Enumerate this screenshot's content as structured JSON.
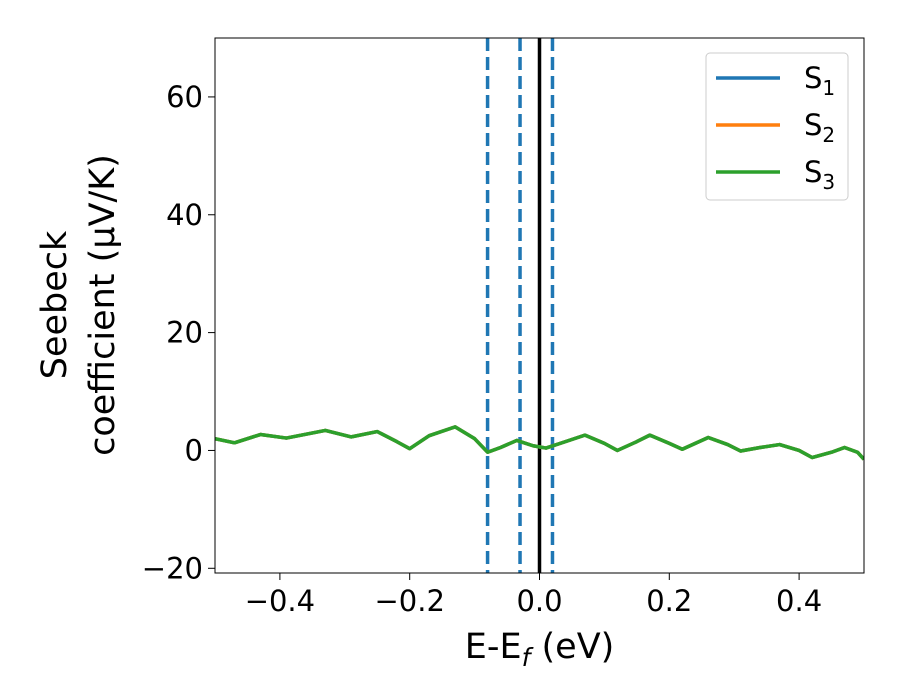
{
  "chart_data": {
    "type": "line",
    "xlabel": [
      "E-E",
      "f",
      " (eV)"
    ],
    "ylabel": [
      "Seebeck",
      "coefficient  (μV/K)"
    ],
    "x": [
      -0.5,
      -0.47,
      -0.43,
      -0.39,
      -0.33,
      -0.29,
      -0.25,
      -0.22,
      -0.2,
      -0.17,
      -0.13,
      -0.1,
      -0.08,
      -0.06,
      -0.035,
      -0.01,
      0.01,
      0.04,
      0.07,
      0.1,
      0.12,
      0.15,
      0.17,
      0.2,
      0.22,
      0.26,
      0.29,
      0.31,
      0.34,
      0.37,
      0.4,
      0.42,
      0.45,
      0.47,
      0.49,
      0.5
    ],
    "series": [
      {
        "name": [
          "S",
          "1"
        ],
        "color": "#1f77b4",
        "values": [
          2.0,
          1.3,
          2.7,
          2.1,
          3.4,
          2.3,
          3.2,
          1.5,
          0.3,
          2.5,
          4.0,
          2.0,
          -0.3,
          0.5,
          1.7,
          0.8,
          0.4,
          1.5,
          2.6,
          1.2,
          0.0,
          1.5,
          2.6,
          1.2,
          0.2,
          2.2,
          1.0,
          -0.1,
          0.5,
          1.0,
          0.0,
          -1.2,
          -0.3,
          0.5,
          -0.3,
          -1.5
        ]
      },
      {
        "name": [
          "S",
          "2"
        ],
        "color": "#ff7f0e",
        "values": [
          2.0,
          1.3,
          2.7,
          2.1,
          3.4,
          2.3,
          3.2,
          1.5,
          0.3,
          2.5,
          4.0,
          2.0,
          -0.3,
          0.5,
          1.7,
          0.8,
          0.4,
          1.5,
          2.6,
          1.2,
          0.0,
          1.5,
          2.6,
          1.2,
          0.2,
          2.2,
          1.0,
          -0.1,
          0.5,
          1.0,
          0.0,
          -1.2,
          -0.3,
          0.5,
          -0.3,
          -1.5
        ]
      },
      {
        "name": [
          "S",
          "3"
        ],
        "color": "#2ca02c",
        "values": [
          2.0,
          1.3,
          2.7,
          2.1,
          3.4,
          2.3,
          3.2,
          1.5,
          0.3,
          2.5,
          4.0,
          2.0,
          -0.3,
          0.5,
          1.7,
          0.8,
          0.4,
          1.5,
          2.6,
          1.2,
          0.0,
          1.5,
          2.6,
          1.2,
          0.2,
          2.2,
          1.0,
          -0.1,
          0.5,
          1.0,
          0.0,
          -1.2,
          -0.3,
          0.5,
          -0.3,
          -1.5
        ]
      }
    ],
    "vlines": [
      {
        "x": -0.08,
        "color": "#1f77b4",
        "dashed": true
      },
      {
        "x": -0.03,
        "color": "#1f77b4",
        "dashed": true
      },
      {
        "x": 0.02,
        "color": "#1f77b4",
        "dashed": true
      },
      {
        "x": 0,
        "color": "#000000",
        "dashed": false
      }
    ],
    "xlim": [
      -0.5,
      0.5
    ],
    "xticks": [
      {
        "value": -0.4,
        "label": "−0.4"
      },
      {
        "value": -0.2,
        "label": "−0.2"
      },
      {
        "value": 0,
        "label": "0.0"
      },
      0.2,
      0.4
    ],
    "ylim": [
      -20.8,
      70
    ],
    "yticks": [
      {
        "value": -20,
        "label": "−20"
      },
      0,
      20,
      40,
      60
    ],
    "grid": false,
    "legend": "upper right"
  }
}
